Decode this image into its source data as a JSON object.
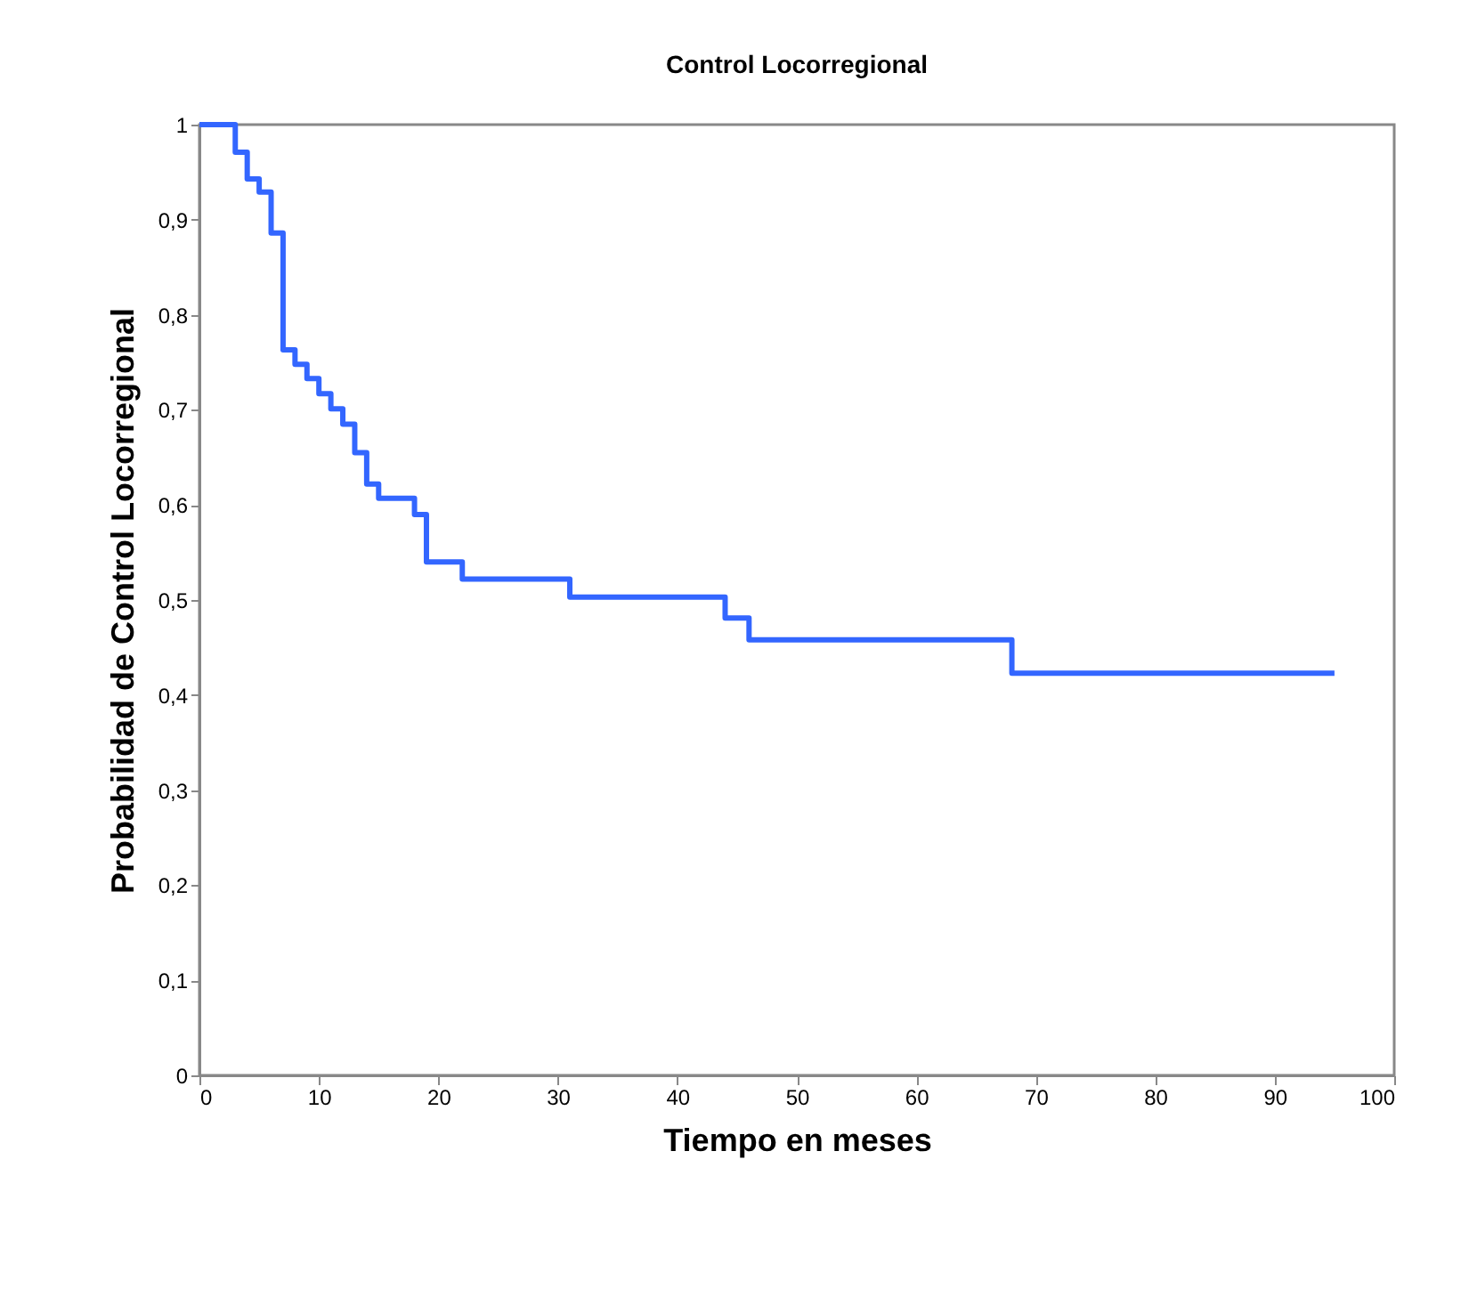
{
  "chart_data": {
    "type": "step",
    "title": "Control Locorregional",
    "xlabel": "Tiempo en meses",
    "ylabel": "Probabilidad de Control Locorregional",
    "x": [
      0,
      3,
      4,
      5,
      6,
      7,
      8,
      9,
      10,
      11,
      12,
      13,
      14,
      15,
      18,
      19,
      22,
      31,
      44,
      46,
      68,
      95
    ],
    "series": [
      {
        "color": "#3366ff",
        "values": [
          1,
          0.971,
          0.943,
          0.929,
          0.886,
          0.763,
          0.748,
          0.733,
          0.717,
          0.701,
          0.685,
          0.655,
          0.622,
          0.607,
          0.59,
          0.54,
          0.522,
          0.503,
          0.481,
          0.458,
          0.423,
          0.423
        ]
      }
    ],
    "xlim": [
      0,
      100
    ],
    "xticks": [
      0,
      10,
      20,
      30,
      40,
      50,
      60,
      70,
      80,
      90,
      100
    ],
    "ylim": [
      0,
      1
    ],
    "yticks": [
      {
        "value": 0,
        "label": "0"
      },
      {
        "value": 0.1,
        "label": "0,1"
      },
      {
        "value": 0.2,
        "label": "0,2"
      },
      {
        "value": 0.3,
        "label": "0,3"
      },
      {
        "value": 0.4,
        "label": "0,4"
      },
      {
        "value": 0.5,
        "label": "0,5"
      },
      {
        "value": 0.6,
        "label": "0,6"
      },
      {
        "value": 0.7,
        "label": "0,7"
      },
      {
        "value": 0.8,
        "label": "0,8"
      },
      {
        "value": 0.9,
        "label": "0,9"
      },
      {
        "value": 1,
        "label": "1"
      }
    ],
    "grid": false,
    "marker": "none",
    "line_style": "solid"
  }
}
